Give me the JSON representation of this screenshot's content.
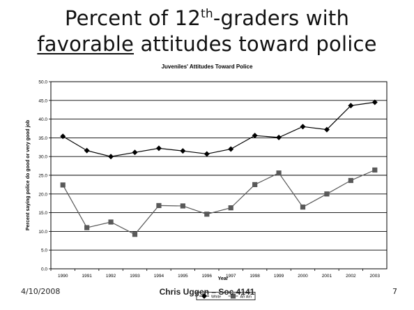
{
  "slide": {
    "title_line1_pre": "Percent of 12",
    "title_line1_sup": "th",
    "title_line1_post": "-graders with",
    "title_line2_underlined": "favorable",
    "title_line2_rest": " attitudes toward police",
    "footer_date": "4/10/2008",
    "footer_center": "Chris Uggen – Soc 4141",
    "page_number": "7"
  },
  "chart_data": {
    "type": "line",
    "title": "Juveniles' Attitudes Toward Police",
    "xlabel": "Year",
    "ylabel": "Percent saying police do good or very good job",
    "categories": [
      "1990",
      "1991",
      "1992",
      "1993",
      "1994",
      "1995",
      "1996",
      "1997",
      "1998",
      "1999",
      "2000",
      "2001",
      "2002",
      "2003"
    ],
    "ylim": [
      0,
      50
    ],
    "y_ticks": [
      "0.0",
      "5.0",
      "10.0",
      "15.0",
      "20.0",
      "25.0",
      "30.0",
      "35.0",
      "40.0",
      "45.0",
      "50.0"
    ],
    "grid": true,
    "legend_position": "bottom",
    "series": [
      {
        "name": "White",
        "marker": "diamond",
        "color": "#000000",
        "values": [
          35.4,
          31.6,
          30.0,
          31.1,
          32.2,
          31.5,
          30.7,
          32.0,
          35.6,
          35.1,
          38.0,
          37.2,
          43.6,
          44.5
        ]
      },
      {
        "name": "Afr Am",
        "marker": "square",
        "color": "#595959",
        "values": [
          22.4,
          11.0,
          12.5,
          9.2,
          16.9,
          16.8,
          14.6,
          16.3,
          22.5,
          25.6,
          16.5,
          20.0,
          23.6,
          26.4
        ]
      }
    ]
  }
}
